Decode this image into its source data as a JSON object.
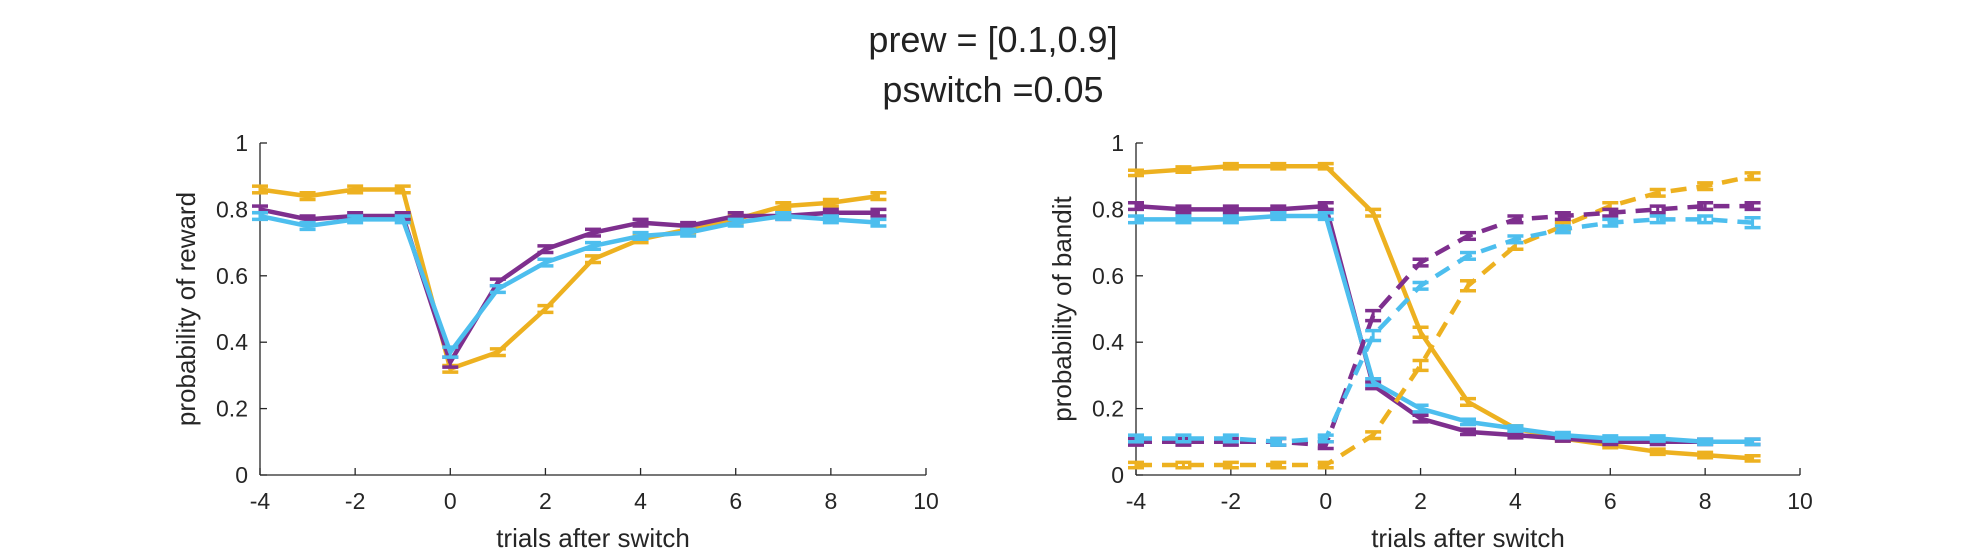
{
  "title_lines": [
    "prew = [0.1,0.9]",
    "pswitch =0.05"
  ],
  "colors": {
    "yellow": "#EDB120",
    "purple": "#7E2F8E",
    "blue": "#4DBEEE",
    "axis": "#262626"
  },
  "chart_data": [
    {
      "type": "line",
      "xlabel": "trials after switch",
      "ylabel": "probability of reward",
      "xlim": [
        -4,
        10
      ],
      "ylim": [
        0,
        1
      ],
      "xticks": [
        -4,
        -2,
        0,
        2,
        4,
        6,
        8,
        10
      ],
      "yticks": [
        0,
        0.2,
        0.4,
        0.6,
        0.8,
        1
      ],
      "x": [
        -4,
        -3,
        -2,
        -1,
        0,
        1,
        2,
        3,
        4,
        5,
        6,
        7,
        8,
        9
      ],
      "series": [
        {
          "color": "#EDB120",
          "dash": "solid",
          "values": [
            0.86,
            0.84,
            0.86,
            0.86,
            0.32,
            0.37,
            0.5,
            0.65,
            0.71,
            0.74,
            0.77,
            0.81,
            0.82,
            0.84
          ],
          "err": [
            0.01,
            0.01,
            0.01,
            0.01,
            0.01,
            0.01,
            0.01,
            0.01,
            0.01,
            0.01,
            0.01,
            0.01,
            0.01,
            0.01
          ]
        },
        {
          "color": "#7E2F8E",
          "dash": "solid",
          "values": [
            0.8,
            0.77,
            0.78,
            0.78,
            0.34,
            0.58,
            0.68,
            0.73,
            0.76,
            0.75,
            0.78,
            0.78,
            0.79,
            0.79
          ],
          "err": [
            0.01,
            0.01,
            0.01,
            0.01,
            0.015,
            0.01,
            0.01,
            0.01,
            0.01,
            0.01,
            0.01,
            0.01,
            0.01,
            0.01
          ]
        },
        {
          "color": "#4DBEEE",
          "dash": "solid",
          "values": [
            0.78,
            0.75,
            0.77,
            0.77,
            0.37,
            0.56,
            0.64,
            0.69,
            0.72,
            0.73,
            0.76,
            0.78,
            0.77,
            0.76
          ],
          "err": [
            0.01,
            0.01,
            0.01,
            0.01,
            0.015,
            0.01,
            0.01,
            0.01,
            0.01,
            0.01,
            0.01,
            0.01,
            0.01,
            0.01
          ]
        }
      ]
    },
    {
      "type": "line",
      "xlabel": "trials after switch",
      "ylabel": "probability of bandit",
      "xlim": [
        -4,
        10
      ],
      "ylim": [
        0,
        1
      ],
      "xticks": [
        -4,
        -2,
        0,
        2,
        4,
        6,
        8,
        10
      ],
      "yticks": [
        0,
        0.2,
        0.4,
        0.6,
        0.8,
        1
      ],
      "x": [
        -4,
        -3,
        -2,
        -1,
        0,
        1,
        2,
        3,
        4,
        5,
        6,
        7,
        8,
        9
      ],
      "series": [
        {
          "color": "#EDB120",
          "dash": "solid",
          "values": [
            0.91,
            0.92,
            0.93,
            0.93,
            0.93,
            0.79,
            0.43,
            0.22,
            0.14,
            0.11,
            0.09,
            0.07,
            0.06,
            0.05
          ],
          "err": [
            0.008,
            0.008,
            0.008,
            0.008,
            0.008,
            0.01,
            0.015,
            0.01,
            0.008,
            0.008,
            0.008,
            0.008,
            0.008,
            0.008
          ]
        },
        {
          "color": "#7E2F8E",
          "dash": "solid",
          "values": [
            0.81,
            0.8,
            0.8,
            0.8,
            0.81,
            0.27,
            0.17,
            0.13,
            0.12,
            0.11,
            0.1,
            0.1,
            0.1,
            0.1
          ],
          "err": [
            0.01,
            0.01,
            0.01,
            0.01,
            0.01,
            0.01,
            0.01,
            0.008,
            0.008,
            0.008,
            0.008,
            0.008,
            0.008,
            0.008
          ]
        },
        {
          "color": "#4DBEEE",
          "dash": "solid",
          "values": [
            0.77,
            0.77,
            0.77,
            0.78,
            0.78,
            0.28,
            0.2,
            0.16,
            0.14,
            0.12,
            0.11,
            0.11,
            0.1,
            0.1
          ],
          "err": [
            0.01,
            0.01,
            0.01,
            0.01,
            0.01,
            0.01,
            0.01,
            0.008,
            0.008,
            0.008,
            0.008,
            0.008,
            0.008,
            0.008
          ]
        },
        {
          "color": "#EDB120",
          "dash": "dashed",
          "values": [
            0.03,
            0.03,
            0.03,
            0.03,
            0.03,
            0.12,
            0.33,
            0.57,
            0.69,
            0.75,
            0.81,
            0.85,
            0.87,
            0.9
          ],
          "err": [
            0.008,
            0.008,
            0.008,
            0.008,
            0.008,
            0.01,
            0.015,
            0.015,
            0.01,
            0.01,
            0.01,
            0.01,
            0.01,
            0.01
          ]
        },
        {
          "color": "#7E2F8E",
          "dash": "dashed",
          "values": [
            0.1,
            0.1,
            0.1,
            0.1,
            0.09,
            0.48,
            0.64,
            0.72,
            0.77,
            0.78,
            0.79,
            0.8,
            0.81,
            0.81
          ],
          "err": [
            0.01,
            0.01,
            0.01,
            0.01,
            0.01,
            0.015,
            0.01,
            0.01,
            0.01,
            0.01,
            0.01,
            0.01,
            0.01,
            0.01
          ]
        },
        {
          "color": "#4DBEEE",
          "dash": "dashed",
          "values": [
            0.11,
            0.11,
            0.11,
            0.1,
            0.11,
            0.42,
            0.57,
            0.66,
            0.71,
            0.74,
            0.76,
            0.77,
            0.77,
            0.76
          ],
          "err": [
            0.01,
            0.01,
            0.01,
            0.01,
            0.01,
            0.015,
            0.01,
            0.01,
            0.01,
            0.01,
            0.01,
            0.01,
            0.01,
            0.015
          ]
        }
      ]
    }
  ]
}
